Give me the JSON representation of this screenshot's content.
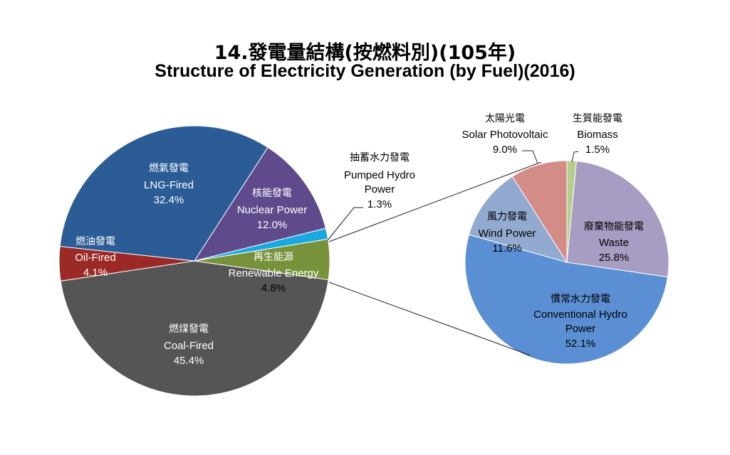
{
  "title_zh": "14.發電量結構(按燃料別)(105年)",
  "title_en": "Structure of Electricity Generation (by Fuel)(2016)",
  "chart_data": [
    {
      "type": "pie",
      "series": [
        {
          "zh": "燃煤發電",
          "en": "Coal-Fired",
          "pct": "45.4%",
          "value": 45.4,
          "color": "#555555"
        },
        {
          "zh": "燃油發電",
          "en": "Oil-Fired",
          "pct": "4.1%",
          "value": 4.1,
          "color": "#9b2a27"
        },
        {
          "zh": "燃氣發電",
          "en": "LNG-Fired",
          "pct": "32.4%",
          "value": 32.4,
          "color": "#2b5c96"
        },
        {
          "zh": "核能發電",
          "en": "Nuclear Power",
          "pct": "12.0%",
          "value": 12.0,
          "color": "#5f4a8b"
        },
        {
          "zh": "抽蓄水力發電",
          "en": "Pumped Hydro Power",
          "en_line1": "Pumped Hydro",
          "en_line2": "Power",
          "pct": "1.3%",
          "value": 1.3,
          "color": "#19a9e0"
        },
        {
          "zh": "再生能源",
          "en": "Renewable Energy",
          "pct": "4.8%",
          "value": 4.8,
          "color": "#77923a"
        }
      ]
    },
    {
      "type": "pie",
      "breakdown_of": "再生能源 Renewable Energy",
      "series": [
        {
          "zh": "生質能發電",
          "en": "Biomass",
          "pct": "1.5%",
          "value": 1.5,
          "color": "#b7cf8e"
        },
        {
          "zh": "廢棄物能發電",
          "en": "Waste",
          "pct": "25.8%",
          "value": 25.8,
          "color": "#a79cc2"
        },
        {
          "zh": "慣常水力發電",
          "en": "Conventional Hydro Power",
          "en_line1": "Conventional Hydro",
          "en_line2": "Power",
          "pct": "52.1%",
          "value": 52.1,
          "color": "#5b8fd4"
        },
        {
          "zh": "風力發電",
          "en": "Wind Power",
          "pct": "11.6%",
          "value": 11.6,
          "color": "#92a9d0"
        },
        {
          "zh": "太陽光電",
          "en": "Solar Photovoltaic",
          "pct": "9.0%",
          "value": 9.0,
          "color": "#d48c87"
        }
      ]
    }
  ]
}
